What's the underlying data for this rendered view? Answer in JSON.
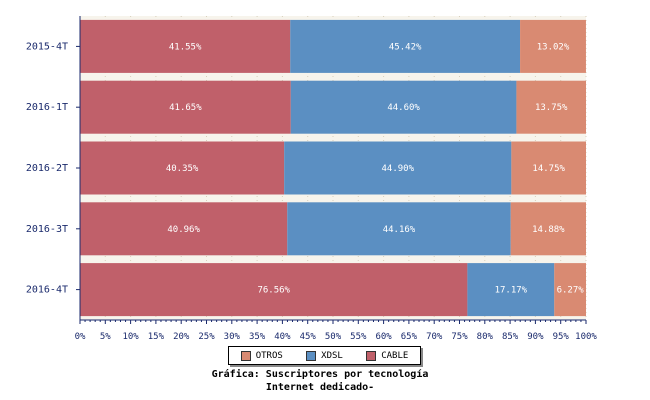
{
  "chart_data": {
    "type": "bar",
    "orientation": "horizontal",
    "stacked": true,
    "categories": [
      "2015-4T",
      "2016-1T",
      "2016-2T",
      "2016-3T",
      "2016-4T"
    ],
    "series": [
      {
        "name": "CABLE",
        "color": "#c0606a",
        "values": [
          41.55,
          41.65,
          40.35,
          40.96,
          76.56
        ],
        "labels": [
          "41.55%",
          "41.65%",
          "40.35%",
          "40.96%",
          "76.56%"
        ]
      },
      {
        "name": "XDSL",
        "color": "#5b8fc2",
        "values": [
          45.42,
          44.6,
          44.9,
          44.16,
          17.17
        ],
        "labels": [
          "45.42%",
          "44.60%",
          "44.90%",
          "44.16%",
          "17.17%"
        ]
      },
      {
        "name": "OTROS",
        "color": "#d98a72",
        "values": [
          13.02,
          13.75,
          14.75,
          14.88,
          6.27
        ],
        "labels": [
          "13.02%",
          "13.75%",
          "14.75%",
          "14.88%",
          "6.27%"
        ]
      }
    ],
    "xlim": [
      0,
      100
    ],
    "x_ticks": [
      "0%",
      "5%",
      "10%",
      "15%",
      "20%",
      "25%",
      "30%",
      "35%",
      "40%",
      "45%",
      "50%",
      "55%",
      "60%",
      "65%",
      "70%",
      "75%",
      "80%",
      "85%",
      "90%",
      "95%",
      "100%"
    ],
    "legend": {
      "placement": "bottom",
      "order": [
        "OTROS",
        "XDSL",
        "CABLE"
      ]
    },
    "title_lines": [
      "Gráfica: Suscriptores por tecnología",
      "Internet dedicado-"
    ],
    "grid": true
  }
}
